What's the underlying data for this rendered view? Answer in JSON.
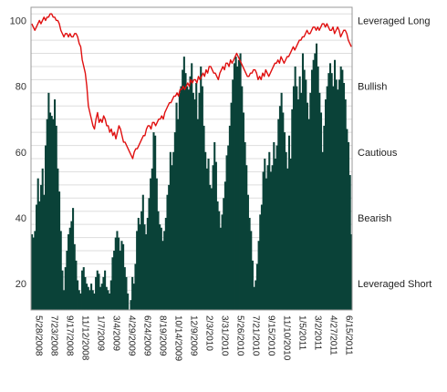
{
  "chart_data": {
    "type": "bar",
    "title": "",
    "xlabel": "",
    "ylabel": "",
    "ylim": [
      12,
      104
    ],
    "yticks": [
      20,
      40,
      60,
      80,
      100
    ],
    "grid": true,
    "right_axis_labels": [
      {
        "y": 100,
        "label": "Leveraged Long"
      },
      {
        "y": 80,
        "label": "Bullish"
      },
      {
        "y": 60,
        "label": "Cautious"
      },
      {
        "y": 40,
        "label": "Bearish"
      },
      {
        "y": 20,
        "label": "Leveraged Short"
      }
    ],
    "x_tick_labels": [
      "5/28/2008",
      "7/23/2008",
      "9/17/2008",
      "11/12/2008",
      "1/7/2009",
      "3/4/2009",
      "4/29/2009",
      "6/24/2009",
      "8/19/2009",
      "10/14/2009",
      "12/9/2009",
      "2/3/2010",
      "3/31/2010",
      "5/26/2010",
      "7/21/2010",
      "9/15/2010",
      "11/10/2010",
      "1/5/2011",
      "3/2/2011",
      "4/27/2011",
      "6/15/2011"
    ],
    "colors": {
      "bars": "#0a4238",
      "line": "#e01010",
      "grid": "#dddddd",
      "frame": "#999999"
    },
    "series": [
      {
        "type": "bar",
        "values": [
          35,
          34,
          36,
          44,
          52,
          45,
          50,
          55,
          47,
          62,
          70,
          78,
          72,
          71,
          70,
          76,
          68,
          55,
          48,
          36,
          24,
          18,
          25,
          30,
          35,
          37,
          39,
          43,
          32,
          27,
          21,
          18,
          17,
          24,
          25,
          22,
          20,
          19,
          18,
          20,
          18,
          17,
          22,
          24,
          23,
          19,
          20,
          22,
          24,
          19,
          18,
          17,
          21,
          28,
          30,
          34,
          36,
          34,
          30,
          33,
          32,
          25,
          22,
          17,
          12,
          15,
          22,
          20,
          26,
          36,
          40,
          38,
          42,
          47,
          38,
          35,
          40,
          46,
          52,
          55,
          66,
          65,
          52,
          42,
          38,
          37,
          33,
          36,
          40,
          47,
          50,
          60,
          56,
          60,
          66,
          75,
          70,
          78,
          80,
          85,
          89,
          84,
          80,
          79,
          83,
          87,
          78,
          76,
          81,
          70,
          78,
          86,
          80,
          68,
          60,
          55,
          58,
          50,
          49,
          56,
          63,
          57,
          45,
          42,
          37,
          41,
          46,
          51,
          59,
          62,
          68,
          75,
          82,
          87,
          89,
          86,
          88,
          90,
          80,
          72,
          63,
          56,
          47,
          40,
          36,
          27,
          19,
          21,
          26,
          33,
          41,
          44,
          54,
          58,
          52,
          56,
          60,
          54,
          56,
          63,
          58,
          62,
          70,
          74,
          78,
          72,
          66,
          60,
          55,
          65,
          58,
          73,
          80,
          86,
          80,
          76,
          83,
          78,
          90,
          85,
          82,
          75,
          70,
          78,
          85,
          88,
          90,
          93,
          86,
          78,
          72,
          60,
          68,
          76,
          80,
          84,
          87,
          84,
          80,
          88,
          82,
          79,
          82,
          86,
          85,
          81,
          76,
          67,
          63,
          53,
          35
        ]
      },
      {
        "type": "line",
        "values": [
          99,
          98,
          97,
          98,
          99,
          100,
          99,
          100,
          101,
          100,
          101,
          101,
          102,
          102,
          101,
          101,
          100,
          100,
          99,
          97,
          96,
          95,
          96,
          96,
          95,
          96,
          95,
          95,
          96,
          96,
          95,
          93,
          92,
          88,
          86,
          84,
          80,
          74,
          72,
          70,
          68,
          67,
          70,
          72,
          69,
          70,
          69,
          71,
          70,
          68,
          68,
          66,
          67,
          65,
          66,
          64,
          66,
          68,
          67,
          65,
          63,
          63,
          62,
          61,
          60,
          59,
          58,
          60,
          61,
          61,
          62,
          63,
          64,
          65,
          65,
          67,
          68,
          68,
          67,
          69,
          69,
          68,
          69,
          70,
          70,
          71,
          70,
          72,
          73,
          74,
          75,
          75,
          76,
          77,
          77,
          78,
          77,
          79,
          79,
          80,
          79,
          80,
          81,
          80,
          82,
          81,
          82,
          82,
          81,
          83,
          82,
          83,
          84,
          83,
          85,
          84,
          86,
          86,
          85,
          84,
          84,
          83,
          82,
          84,
          85,
          86,
          85,
          87,
          87,
          86,
          88,
          87,
          88,
          89,
          90,
          89,
          88,
          87,
          86,
          85,
          84,
          83,
          83,
          84,
          84,
          85,
          85,
          84,
          82,
          83,
          82,
          84,
          83,
          85,
          84,
          83,
          84,
          85,
          86,
          87,
          87,
          88,
          87,
          89,
          88,
          87,
          88,
          89,
          89,
          90,
          91,
          92,
          91,
          92,
          93,
          94,
          94,
          95,
          95,
          96,
          97,
          96,
          96,
          97,
          98,
          98,
          97,
          98,
          97,
          98,
          99,
          99,
          98,
          99,
          98,
          97,
          97,
          98,
          96,
          97,
          98,
          97,
          95,
          96,
          97,
          97,
          96,
          94,
          93,
          92
        ]
      }
    ]
  }
}
